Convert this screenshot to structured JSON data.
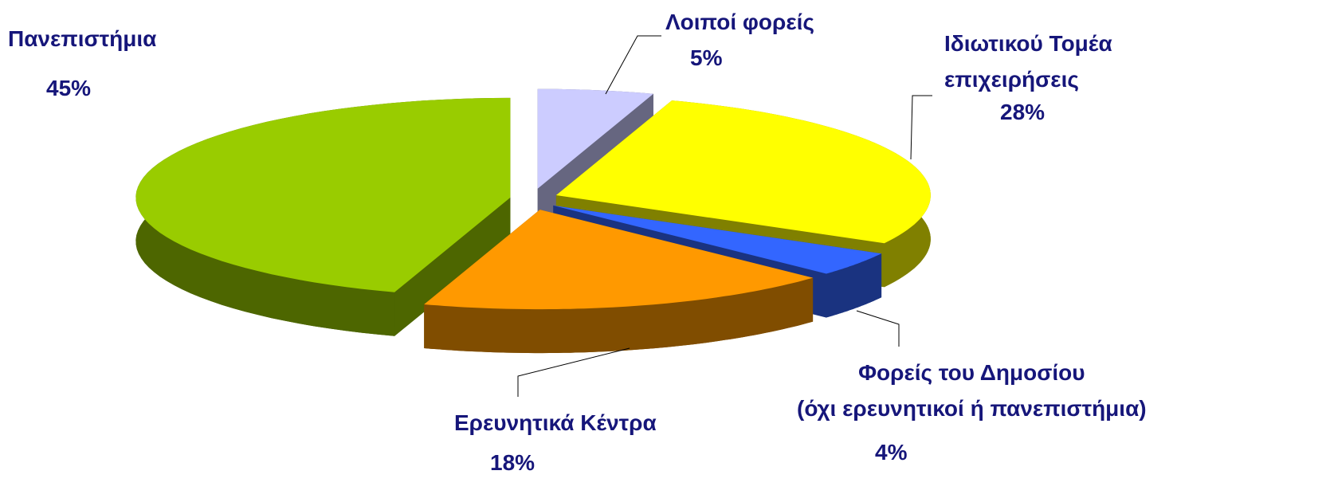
{
  "chart_data": {
    "type": "pie3d",
    "categories": [
      "Λοιποί φορείς",
      "Ιδιωτικού Τομέα\nεπιχειρήσεις",
      "Φορείς του Δημοσίου\n(όχι ερευνητικοί ή πανεπιστήμια)",
      "Ερευνητικά Κέντρα",
      "Πανεπιστήμια"
    ],
    "values": [
      5,
      28,
      4,
      18,
      45
    ],
    "value_labels": [
      "5%",
      "28%",
      "4%",
      "18%",
      "45%"
    ],
    "colors": [
      "#ccccff",
      "#ffff00",
      "#3366ff",
      "#ff9900",
      "#99cc00"
    ]
  }
}
